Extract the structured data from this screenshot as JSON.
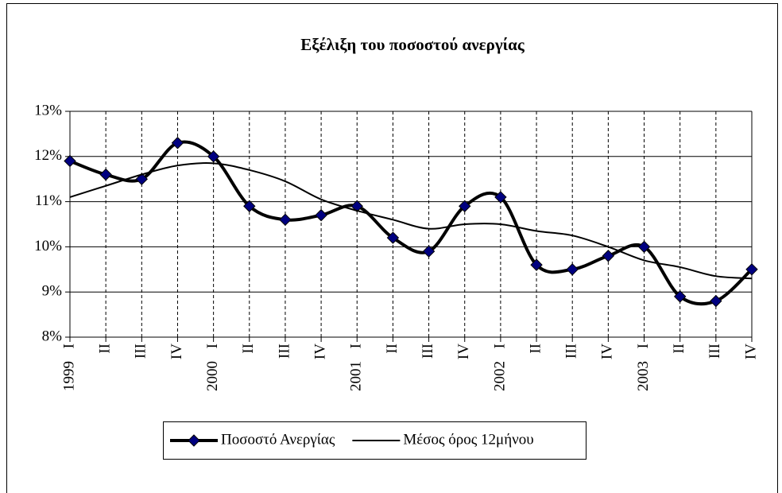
{
  "chart_data": {
    "type": "line",
    "title": "Εξέλιξη του ποσοστού ανεργίας",
    "categories": [
      "I",
      "II",
      "III",
      "IV",
      "I",
      "II",
      "III",
      "IV",
      "I",
      "II",
      "III",
      "IV",
      "I",
      "II",
      "III",
      "IV",
      "I",
      "II",
      "III",
      "IV"
    ],
    "category_groups": [
      "1999",
      null,
      null,
      null,
      "2000",
      null,
      null,
      null,
      "2001",
      null,
      null,
      null,
      "2002",
      null,
      null,
      null,
      "2003",
      null,
      null,
      null
    ],
    "series": [
      {
        "name": "Ποσοστό Ανεργίας",
        "color": "#000000",
        "marker_color": "#000080",
        "values": [
          11.9,
          11.6,
          11.5,
          12.3,
          12.0,
          10.9,
          10.6,
          10.7,
          10.9,
          10.2,
          9.9,
          10.9,
          11.1,
          9.6,
          9.5,
          9.8,
          10.0,
          8.9,
          8.8,
          9.5
        ]
      },
      {
        "name": "Μέσος όρος 12μήνου",
        "color": "#000000",
        "values": [
          11.1,
          11.35,
          11.6,
          11.8,
          11.85,
          11.7,
          11.45,
          11.05,
          10.8,
          10.6,
          10.4,
          10.5,
          10.5,
          10.35,
          10.25,
          10.0,
          9.7,
          9.55,
          9.35,
          9.3
        ]
      }
    ],
    "ylim": [
      8,
      13
    ],
    "yticks": [
      {
        "value": 8,
        "label": "8%"
      },
      {
        "value": 9,
        "label": "9%"
      },
      {
        "value": 10,
        "label": "10%"
      },
      {
        "value": 11,
        "label": "11%"
      },
      {
        "value": 12,
        "label": "12%"
      },
      {
        "value": 13,
        "label": "13%"
      }
    ],
    "grid": true,
    "legend": "bottom"
  }
}
